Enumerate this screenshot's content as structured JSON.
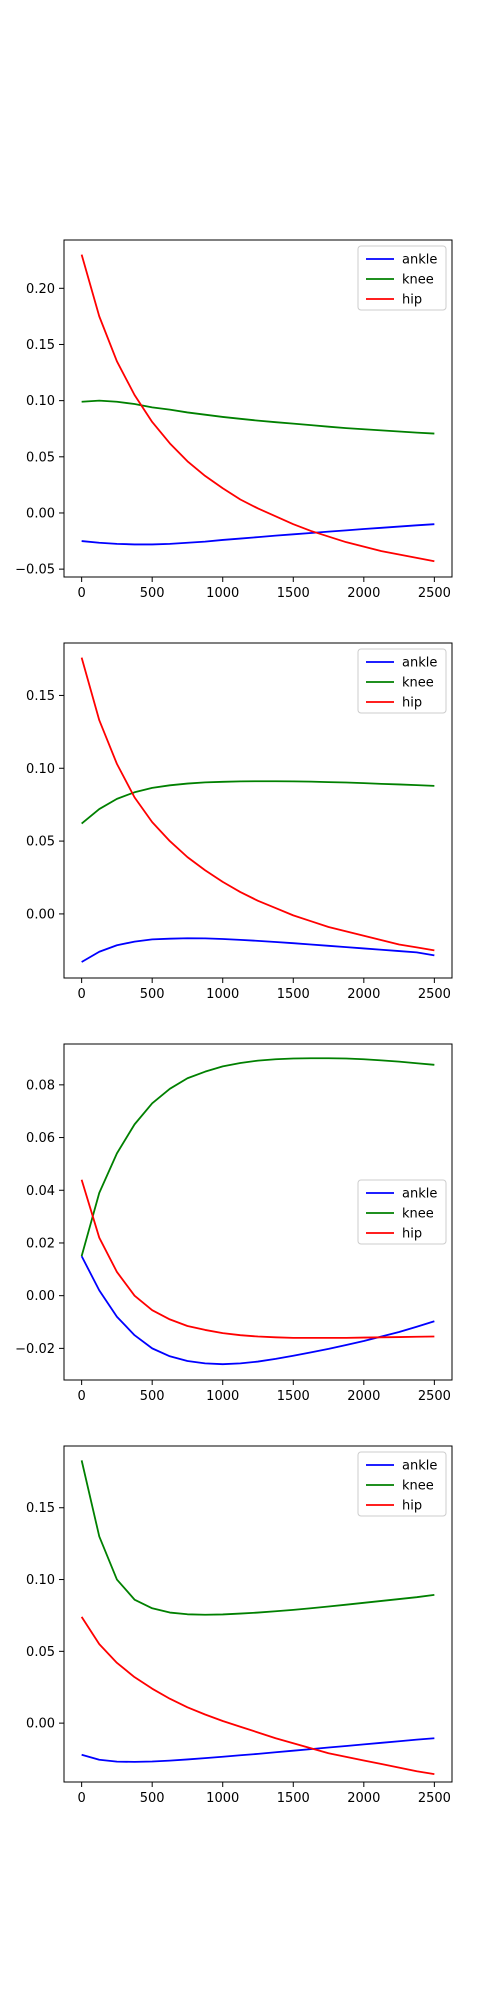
{
  "chart_data": [
    {
      "type": "line",
      "title": "",
      "xlabel": "",
      "ylabel": "",
      "xlim": [
        -125,
        2625
      ],
      "ylim": [
        -0.057,
        0.243
      ],
      "xticks": [
        0,
        500,
        1000,
        1500,
        2000,
        2500
      ],
      "xtick_labels": [
        "0",
        "500",
        "1000",
        "1500",
        "2000",
        "2500"
      ],
      "yticks": [
        -0.05,
        0.0,
        0.05,
        0.1,
        0.15,
        0.2
      ],
      "ytick_labels": [
        "−0.05",
        "0.00",
        "0.05",
        "0.10",
        "0.15",
        "0.20"
      ],
      "legend": "top-right",
      "x": [
        0,
        125,
        250,
        375,
        500,
        625,
        750,
        875,
        1000,
        1125,
        1250,
        1375,
        1500,
        1625,
        1750,
        1875,
        2000,
        2125,
        2250,
        2375,
        2500
      ],
      "series": [
        {
          "name": "ankle",
          "color": "#0000ff",
          "values": [
            -0.025,
            -0.0265,
            -0.0275,
            -0.028,
            -0.028,
            -0.0275,
            -0.0265,
            -0.0255,
            -0.024,
            -0.0228,
            -0.0215,
            -0.0202,
            -0.019,
            -0.0178,
            -0.0166,
            -0.0155,
            -0.0143,
            -0.0132,
            -0.0121,
            -0.011,
            -0.01
          ]
        },
        {
          "name": "knee",
          "color": "#008000",
          "values": [
            0.099,
            0.1,
            0.099,
            0.097,
            0.094,
            0.092,
            0.0895,
            0.0875,
            0.0855,
            0.0838,
            0.0822,
            0.0808,
            0.0795,
            0.0782,
            0.0768,
            0.0755,
            0.0745,
            0.0735,
            0.0725,
            0.0715,
            0.0707
          ]
        },
        {
          "name": "hip",
          "color": "#ff0000",
          "values": [
            0.23,
            0.175,
            0.135,
            0.105,
            0.081,
            0.062,
            0.046,
            0.033,
            0.022,
            0.012,
            0.004,
            -0.003,
            -0.01,
            -0.016,
            -0.021,
            -0.026,
            -0.03,
            -0.034,
            -0.037,
            -0.04,
            -0.043
          ]
        }
      ]
    },
    {
      "type": "line",
      "title": "",
      "xlabel": "",
      "ylabel": "",
      "xlim": [
        -125,
        2625
      ],
      "ylim": [
        -0.044,
        0.186
      ],
      "xticks": [
        0,
        500,
        1000,
        1500,
        2000,
        2500
      ],
      "xtick_labels": [
        "0",
        "500",
        "1000",
        "1500",
        "2000",
        "2500"
      ],
      "yticks": [
        0.0,
        0.05,
        0.1,
        0.15
      ],
      "ytick_labels": [
        "0.00",
        "0.05",
        "0.10",
        "0.15"
      ],
      "legend": "top-right",
      "x": [
        0,
        125,
        250,
        375,
        500,
        625,
        750,
        875,
        1000,
        1125,
        1250,
        1375,
        1500,
        1625,
        1750,
        1875,
        2000,
        2125,
        2250,
        2375,
        2500
      ],
      "series": [
        {
          "name": "ankle",
          "color": "#0000ff",
          "values": [
            -0.033,
            -0.026,
            -0.0215,
            -0.019,
            -0.0175,
            -0.017,
            -0.0167,
            -0.0168,
            -0.0172,
            -0.0178,
            -0.0185,
            -0.0193,
            -0.0201,
            -0.021,
            -0.0219,
            -0.0228,
            -0.0237,
            -0.0246,
            -0.0255,
            -0.0264,
            -0.0285
          ]
        },
        {
          "name": "knee",
          "color": "#008000",
          "values": [
            0.062,
            0.072,
            0.079,
            0.0835,
            0.0865,
            0.0883,
            0.0895,
            0.0903,
            0.0907,
            0.091,
            0.0911,
            0.0911,
            0.091,
            0.0908,
            0.0905,
            0.0902,
            0.0898,
            0.0893,
            0.0889,
            0.0884,
            0.0879
          ]
        },
        {
          "name": "hip",
          "color": "#ff0000",
          "values": [
            0.176,
            0.133,
            0.103,
            0.08,
            0.063,
            0.05,
            0.039,
            0.03,
            0.022,
            0.015,
            0.009,
            0.004,
            -0.001,
            -0.005,
            -0.009,
            -0.012,
            -0.015,
            -0.018,
            -0.021,
            -0.023,
            -0.025
          ]
        }
      ]
    },
    {
      "type": "line",
      "title": "",
      "xlabel": "",
      "ylabel": "",
      "xlim": [
        -125,
        2625
      ],
      "ylim": [
        -0.032,
        0.0955
      ],
      "xticks": [
        0,
        500,
        1000,
        1500,
        2000,
        2500
      ],
      "xtick_labels": [
        "0",
        "500",
        "1000",
        "1500",
        "2000",
        "2500"
      ],
      "yticks": [
        -0.02,
        0.0,
        0.02,
        0.04,
        0.06,
        0.08
      ],
      "ytick_labels": [
        "−0.02",
        "0.00",
        "0.02",
        "0.04",
        "0.06",
        "0.08"
      ],
      "legend": "center-right",
      "x": [
        0,
        125,
        250,
        375,
        500,
        625,
        750,
        875,
        1000,
        1125,
        1250,
        1375,
        1500,
        1625,
        1750,
        1875,
        2000,
        2125,
        2250,
        2375,
        2500
      ],
      "series": [
        {
          "name": "ankle",
          "color": "#0000ff",
          "values": [
            0.015,
            0.002,
            -0.008,
            -0.015,
            -0.02,
            -0.023,
            -0.0248,
            -0.0257,
            -0.026,
            -0.0257,
            -0.025,
            -0.024,
            -0.0228,
            -0.0215,
            -0.0202,
            -0.0187,
            -0.0172,
            -0.0155,
            -0.0138,
            -0.0118,
            -0.0097
          ]
        },
        {
          "name": "knee",
          "color": "#008000",
          "values": [
            0.015,
            0.039,
            0.054,
            0.065,
            0.073,
            0.0785,
            0.0825,
            0.085,
            0.087,
            0.0883,
            0.0892,
            0.0897,
            0.09,
            0.0901,
            0.0901,
            0.09,
            0.0897,
            0.0893,
            0.0888,
            0.0882,
            0.0876
          ]
        },
        {
          "name": "hip",
          "color": "#ff0000",
          "values": [
            0.044,
            0.022,
            0.009,
            0.0,
            -0.0055,
            -0.009,
            -0.0115,
            -0.013,
            -0.0142,
            -0.015,
            -0.0155,
            -0.0158,
            -0.016,
            -0.016,
            -0.016,
            -0.016,
            -0.0159,
            -0.0158,
            -0.0157,
            -0.0156,
            -0.0155
          ]
        }
      ]
    },
    {
      "type": "line",
      "title": "",
      "xlabel": "",
      "ylabel": "",
      "xlim": [
        -125,
        2625
      ],
      "ylim": [
        -0.041,
        0.193
      ],
      "xticks": [
        0,
        500,
        1000,
        1500,
        2000,
        2500
      ],
      "xtick_labels": [
        "0",
        "500",
        "1000",
        "1500",
        "2000",
        "2500"
      ],
      "yticks": [
        0.0,
        0.05,
        0.1,
        0.15
      ],
      "ytick_labels": [
        "0.00",
        "0.05",
        "0.10",
        "0.15"
      ],
      "legend": "top-right",
      "x": [
        0,
        125,
        250,
        375,
        500,
        625,
        750,
        875,
        1000,
        1125,
        1250,
        1375,
        1500,
        1625,
        1750,
        1875,
        2000,
        2125,
        2250,
        2375,
        2500
      ],
      "series": [
        {
          "name": "ankle",
          "color": "#0000ff",
          "values": [
            -0.022,
            -0.0255,
            -0.0268,
            -0.027,
            -0.0267,
            -0.0261,
            -0.0253,
            -0.0244,
            -0.0234,
            -0.0224,
            -0.0214,
            -0.0203,
            -0.0192,
            -0.0181,
            -0.017,
            -0.0159,
            -0.0148,
            -0.0137,
            -0.0126,
            -0.0115,
            -0.0105
          ]
        },
        {
          "name": "knee",
          "color": "#008000",
          "values": [
            0.183,
            0.13,
            0.1,
            0.086,
            0.08,
            0.077,
            0.0758,
            0.0755,
            0.0757,
            0.0763,
            0.077,
            0.0779,
            0.0789,
            0.08,
            0.0812,
            0.0825,
            0.0838,
            0.0851,
            0.0864,
            0.0877,
            0.0893
          ]
        },
        {
          "name": "hip",
          "color": "#ff0000",
          "values": [
            0.074,
            0.055,
            0.042,
            0.032,
            0.024,
            0.017,
            0.011,
            0.006,
            0.0015,
            -0.0025,
            -0.0065,
            -0.0105,
            -0.014,
            -0.0175,
            -0.021,
            -0.0235,
            -0.026,
            -0.0285,
            -0.031,
            -0.0335,
            -0.0355
          ]
        }
      ]
    }
  ]
}
